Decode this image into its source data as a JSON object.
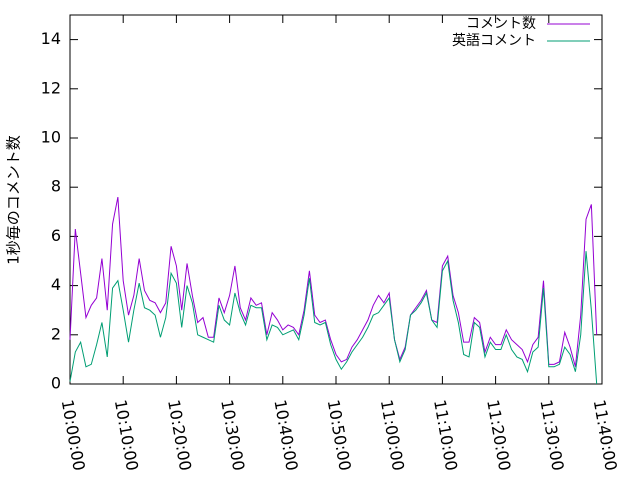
{
  "chart_data": {
    "type": "line",
    "y_label": "1秒毎のコメント数",
    "x": [
      "10:00:00",
      "10:01:00",
      "10:02:00",
      "10:03:00",
      "10:04:00",
      "10:05:00",
      "10:06:00",
      "10:07:00",
      "10:08:00",
      "10:09:00",
      "10:10:00",
      "10:11:00",
      "10:12:00",
      "10:13:00",
      "10:14:00",
      "10:15:00",
      "10:16:00",
      "10:17:00",
      "10:18:00",
      "10:19:00",
      "10:20:00",
      "10:21:00",
      "10:22:00",
      "10:23:00",
      "10:24:00",
      "10:25:00",
      "10:26:00",
      "10:27:00",
      "10:28:00",
      "10:29:00",
      "10:30:00",
      "10:31:00",
      "10:32:00",
      "10:33:00",
      "10:34:00",
      "10:35:00",
      "10:36:00",
      "10:37:00",
      "10:38:00",
      "10:39:00",
      "10:40:00",
      "10:41:00",
      "10:42:00",
      "10:43:00",
      "10:44:00",
      "10:45:00",
      "10:46:00",
      "10:47:00",
      "10:48:00",
      "10:49:00",
      "10:50:00",
      "10:51:00",
      "10:52:00",
      "10:53:00",
      "10:54:00",
      "10:55:00",
      "10:56:00",
      "10:57:00",
      "10:58:00",
      "10:59:00",
      "11:00:00",
      "11:01:00",
      "11:02:00",
      "11:03:00",
      "11:04:00",
      "11:05:00",
      "11:06:00",
      "11:07:00",
      "11:08:00",
      "11:09:00",
      "11:10:00",
      "11:11:00",
      "11:12:00",
      "11:13:00",
      "11:14:00",
      "11:15:00",
      "11:16:00",
      "11:17:00",
      "11:18:00",
      "11:19:00",
      "11:20:00",
      "11:21:00",
      "11:22:00",
      "11:23:00",
      "11:24:00",
      "11:25:00",
      "11:26:00",
      "11:27:00",
      "11:28:00",
      "11:29:00",
      "11:30:00",
      "11:31:00",
      "11:32:00",
      "11:33:00",
      "11:34:00",
      "11:35:00",
      "11:36:00",
      "11:37:00",
      "11:38:00",
      "11:39:00"
    ],
    "series": [
      {
        "name": "コメント数",
        "color": "#9400d3",
        "values": [
          1.8,
          6.3,
          4.5,
          2.7,
          3.2,
          3.5,
          5.1,
          3.0,
          6.5,
          7.6,
          4.2,
          2.8,
          3.6,
          5.1,
          3.8,
          3.4,
          3.3,
          2.9,
          3.3,
          5.6,
          4.8,
          3.0,
          4.9,
          3.6,
          2.5,
          2.7,
          1.9,
          1.9,
          3.5,
          2.9,
          3.6,
          4.8,
          3.1,
          2.6,
          3.5,
          3.2,
          3.3,
          2.0,
          2.9,
          2.6,
          2.2,
          2.4,
          2.3,
          2.0,
          3.0,
          4.6,
          2.8,
          2.5,
          2.6,
          1.8,
          1.2,
          0.9,
          1.0,
          1.5,
          1.8,
          2.2,
          2.6,
          3.2,
          3.6,
          3.3,
          3.7,
          1.8,
          1.0,
          1.5,
          2.8,
          3.1,
          3.4,
          3.8,
          2.6,
          2.5,
          4.8,
          5.2,
          3.6,
          2.9,
          1.7,
          1.7,
          2.7,
          2.5,
          1.3,
          1.9,
          1.6,
          1.6,
          2.2,
          1.8,
          1.6,
          1.4,
          0.9,
          1.6,
          1.9,
          4.2,
          0.8,
          0.8,
          0.9,
          2.1,
          1.5,
          0.7,
          2.8,
          6.7,
          7.3,
          2.0
        ]
      },
      {
        "name": "英語コメント",
        "color": "#009e73",
        "values": [
          0.1,
          1.3,
          1.7,
          0.7,
          0.8,
          1.6,
          2.5,
          1.1,
          3.9,
          4.2,
          3.0,
          1.7,
          3.0,
          4.1,
          3.1,
          3.0,
          2.8,
          1.9,
          2.7,
          4.5,
          4.1,
          2.3,
          4.0,
          3.3,
          2.0,
          1.9,
          1.8,
          1.7,
          3.2,
          2.6,
          2.4,
          3.7,
          2.9,
          2.4,
          3.2,
          3.1,
          3.1,
          1.8,
          2.4,
          2.3,
          2.0,
          2.1,
          2.2,
          1.8,
          2.8,
          4.3,
          2.5,
          2.4,
          2.5,
          1.6,
          1.0,
          0.6,
          0.9,
          1.3,
          1.6,
          1.9,
          2.3,
          2.8,
          2.9,
          3.2,
          3.5,
          1.8,
          0.9,
          1.4,
          2.8,
          3.0,
          3.3,
          3.7,
          2.6,
          2.3,
          4.6,
          5.0,
          3.4,
          2.5,
          1.2,
          1.1,
          2.5,
          2.3,
          1.1,
          1.7,
          1.4,
          1.4,
          2.0,
          1.4,
          1.1,
          1.0,
          0.5,
          1.3,
          1.5,
          3.9,
          0.7,
          0.7,
          0.8,
          1.5,
          1.2,
          0.5,
          2.0,
          5.4,
          3.0,
          0.0
        ]
      }
    ],
    "xlim": [
      "10:00:00",
      "11:40:00"
    ],
    "xticks": [
      "10:00:00",
      "10:10:00",
      "10:20:00",
      "10:30:00",
      "10:40:00",
      "10:50:00",
      "11:00:00",
      "11:10:00",
      "11:20:00",
      "11:30:00",
      "11:40:00"
    ],
    "ylim": [
      0,
      15
    ],
    "yticks": [
      0,
      2,
      4,
      6,
      8,
      10,
      12,
      14
    ],
    "grid": false,
    "legend": "top-right"
  }
}
